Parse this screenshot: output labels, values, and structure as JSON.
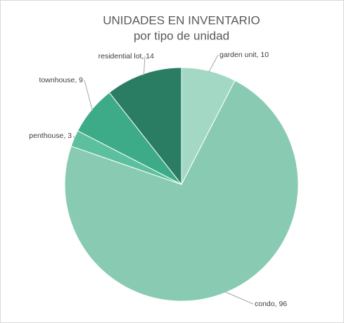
{
  "chart_data": {
    "type": "pie",
    "title": "UNIDADES EN INVENTARIO",
    "subtitle": "por tipo de unidad",
    "values": [
      10,
      96,
      3,
      9,
      14
    ],
    "value_labels": [
      "garden unit, 10",
      "condo, 96",
      "penthouse, 3",
      "townhouse, 9",
      "residential lot, 14"
    ],
    "colors": [
      "#a3d9c4",
      "#88cbb2",
      "#5cbf9e",
      "#3eab88",
      "#2a7d62"
    ]
  }
}
